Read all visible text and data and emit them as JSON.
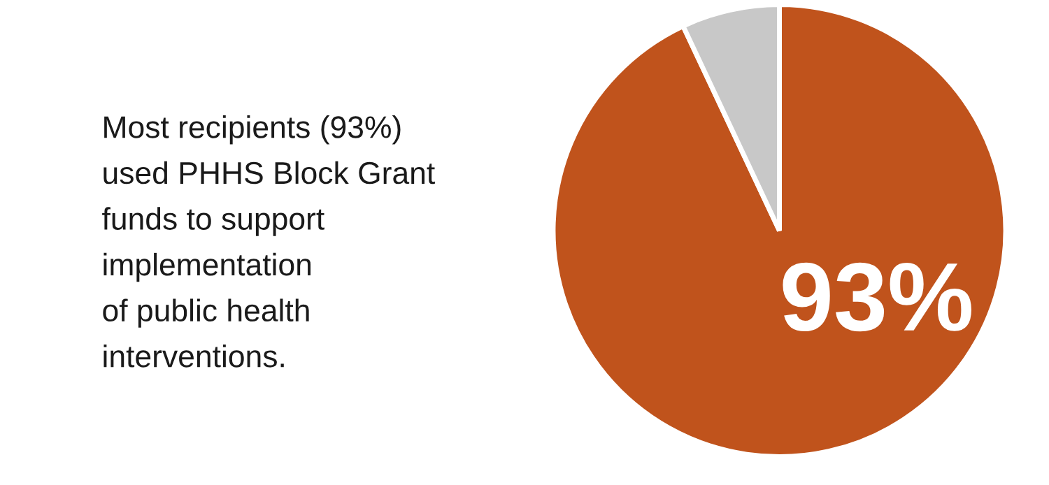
{
  "chart_data": {
    "type": "pie",
    "categories": [
      null,
      null
    ],
    "values": [
      93,
      7
    ],
    "colors": [
      "#c0531c",
      "#c8c8c8"
    ],
    "value_labels": [
      "93%",
      null
    ],
    "annotations": [
      "Most recipients (93%)\nused PHHS Block Grant\nfunds to support\nimplementation\nof public health\ninterventions."
    ]
  }
}
